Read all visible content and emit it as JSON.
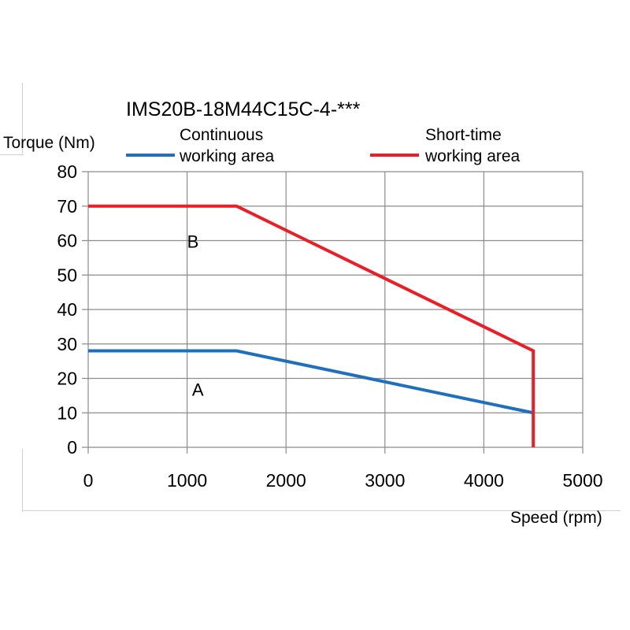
{
  "chart_data": {
    "type": "line",
    "title": "IMS20B-18M44C15C-4-***",
    "xlabel": "Speed (rpm)",
    "ylabel": "Torque (Nm)",
    "xlim": [
      0,
      5000
    ],
    "ylim": [
      0,
      80
    ],
    "x_ticks": [
      "0",
      "1000",
      "2000",
      "3000",
      "4000",
      "5000"
    ],
    "y_ticks": [
      "0",
      "10",
      "20",
      "30",
      "40",
      "50",
      "60",
      "70",
      "80"
    ],
    "grid": true,
    "legend_position": "top",
    "series": [
      {
        "name": "Continuous working area",
        "legend_lines": [
          "Continuous",
          "working area"
        ],
        "color": "#1f6fbf",
        "points": [
          [
            0,
            28
          ],
          [
            1500,
            28
          ],
          [
            4500,
            10
          ]
        ]
      },
      {
        "name": "Short-time working area",
        "legend_lines": [
          "Short-time",
          "working area"
        ],
        "color": "#ee1c24",
        "points": [
          [
            0,
            70
          ],
          [
            1500,
            70
          ],
          [
            4500,
            28
          ],
          [
            4500,
            0
          ]
        ]
      }
    ],
    "annotations": [
      {
        "text": "B",
        "x": 1000,
        "y": 58
      },
      {
        "text": "A",
        "x": 1050,
        "y": 15
      }
    ]
  }
}
